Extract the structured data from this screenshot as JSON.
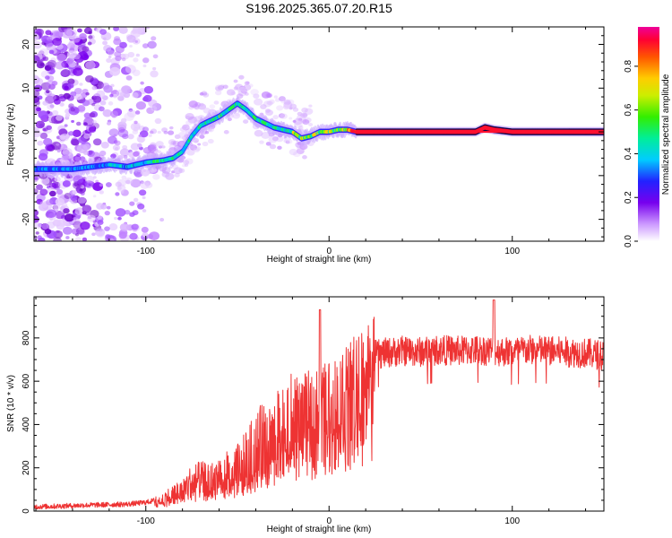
{
  "title": "S196.2025.365.07.20.R15",
  "chart_data": [
    {
      "type": "heatmap",
      "title": "S196.2025.365.07.20.R15",
      "xlabel": "Height of straight line (km)",
      "ylabel": "Frequency (Hz)",
      "xlim": [
        -161,
        150
      ],
      "ylim": [
        -25,
        24
      ],
      "xticks": [
        -100,
        0,
        100
      ],
      "yticks": [
        -20,
        -10,
        0,
        10,
        20
      ],
      "colorbar": {
        "label": "Normalized spectral amplitude",
        "range": [
          0,
          0.98
        ],
        "ticks": [
          0.0,
          0.2,
          0.4,
          0.6,
          0.8
        ]
      },
      "ridge_line": {
        "x": [
          -161,
          -150,
          -140,
          -130,
          -120,
          -110,
          -100,
          -90,
          -85,
          -80,
          -75,
          -70,
          -65,
          -60,
          -55,
          -50,
          -45,
          -40,
          -35,
          -30,
          -25,
          -20,
          -15,
          -10,
          -5,
          0,
          5,
          10,
          15,
          20,
          40,
          60,
          80,
          85,
          90,
          100,
          120,
          150
        ],
        "y": [
          -8.5,
          -8.5,
          -8.5,
          -8,
          -7.5,
          -8,
          -7,
          -6.5,
          -6,
          -4.5,
          -1,
          1.5,
          2.5,
          3.5,
          5,
          6.5,
          5,
          3,
          2,
          1,
          0.5,
          0,
          -1.5,
          -1,
          0,
          0,
          0.5,
          0.5,
          0,
          0,
          0,
          0,
          0,
          1,
          0.5,
          0,
          0,
          0
        ]
      }
    },
    {
      "type": "line",
      "xlabel": "Height of straight line (km)",
      "ylabel": "SNR (10 * v/v)",
      "xlim": [
        -161,
        150
      ],
      "ylim": [
        0,
        990
      ],
      "xticks": [
        -100,
        0,
        100
      ],
      "yticks": [
        0,
        200,
        400,
        600,
        800
      ],
      "series": [
        {
          "name": "SNR",
          "color": "#ee3333",
          "x": [
            -161,
            -150,
            -140,
            -130,
            -120,
            -110,
            -100,
            -90,
            -85,
            -80,
            -75,
            -70,
            -65,
            -60,
            -55,
            -50,
            -45,
            -40,
            -35,
            -30,
            -25,
            -20,
            -15,
            -10,
            -5,
            0,
            5,
            10,
            15,
            20,
            25,
            30,
            40,
            50,
            60,
            70,
            80,
            90,
            100,
            110,
            120,
            130,
            140,
            150
          ],
          "values": [
            20,
            22,
            25,
            28,
            30,
            32,
            40,
            60,
            80,
            100,
            140,
            150,
            140,
            170,
            180,
            200,
            240,
            300,
            330,
            350,
            380,
            420,
            460,
            470,
            500,
            520,
            560,
            600,
            660,
            700,
            720,
            730,
            740,
            735,
            745,
            740,
            745,
            740,
            735,
            745,
            740,
            735,
            730,
            720
          ]
        }
      ]
    }
  ]
}
